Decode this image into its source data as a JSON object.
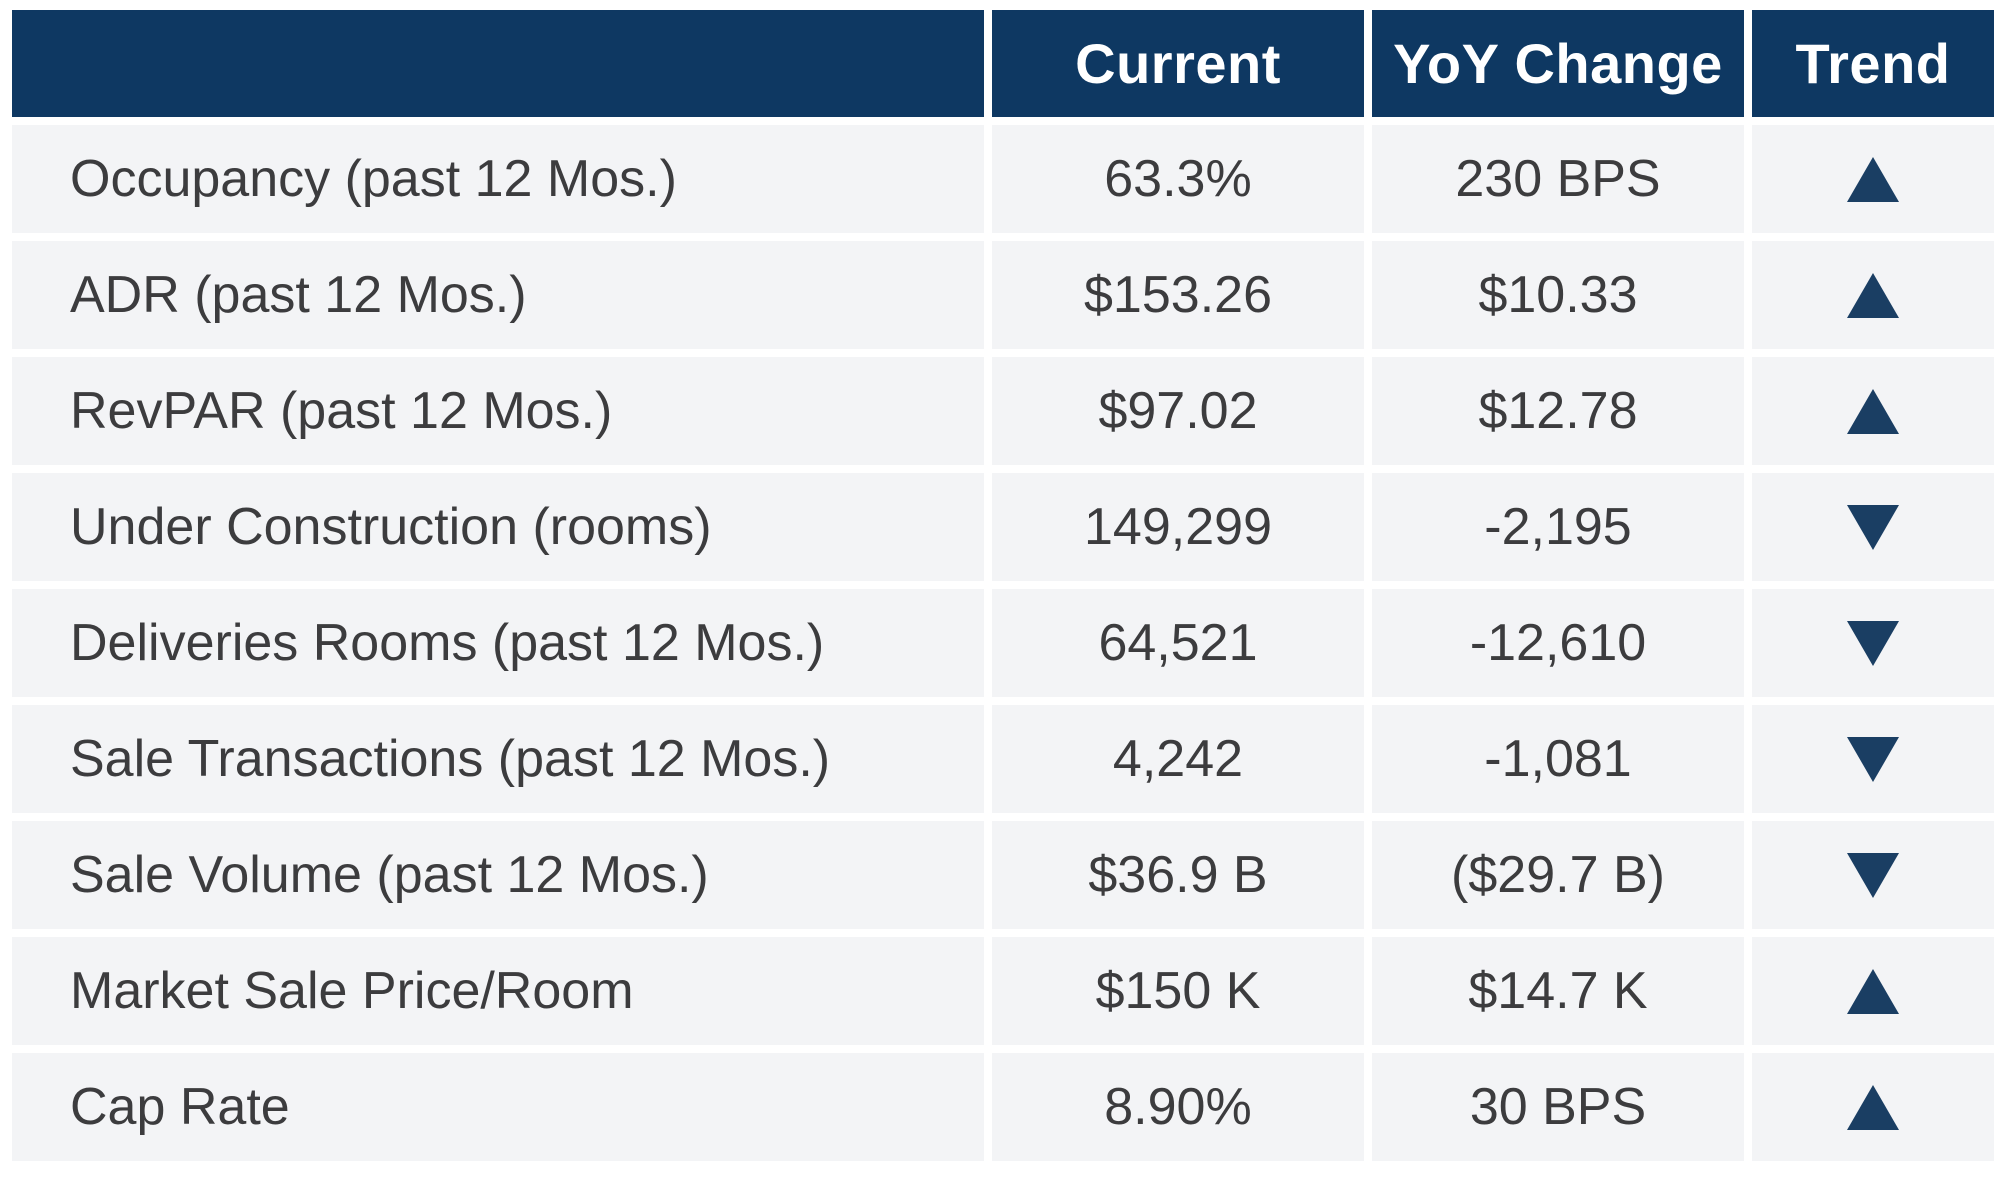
{
  "chart_data": {
    "type": "table",
    "columns": [
      "",
      "Current",
      "YoY Change",
      "Trend"
    ],
    "rows": [
      [
        "Occupancy (past 12 Mos.)",
        "63.3%",
        "230 BPS",
        "up"
      ],
      [
        "ADR (past 12 Mos.)",
        "$153.26",
        "$10.33",
        "up"
      ],
      [
        "RevPAR (past 12 Mos.)",
        "$97.02",
        "$12.78",
        "up"
      ],
      [
        "Under Construction (rooms)",
        "149,299",
        "-2,195",
        "down"
      ],
      [
        "Deliveries Rooms (past 12 Mos.)",
        "64,521",
        "-12,610",
        "down"
      ],
      [
        "Sale Transactions (past 12 Mos.)",
        "4,242",
        "-1,081",
        "down"
      ],
      [
        "Sale Volume (past 12 Mos.)",
        "$36.9 B",
        "($29.7 B)",
        "down"
      ],
      [
        "Market Sale Price/Room",
        "$150 K",
        "$14.7 K",
        "up"
      ],
      [
        "Cap Rate",
        "8.90%",
        "30 BPS",
        "up"
      ]
    ]
  },
  "colors": {
    "header_bg": "#0E3862",
    "trend_triangle": "#1A3E63",
    "row_bg": "#F3F4F6",
    "text": "#3C3C3E",
    "header_text": "#FFFFFF"
  }
}
